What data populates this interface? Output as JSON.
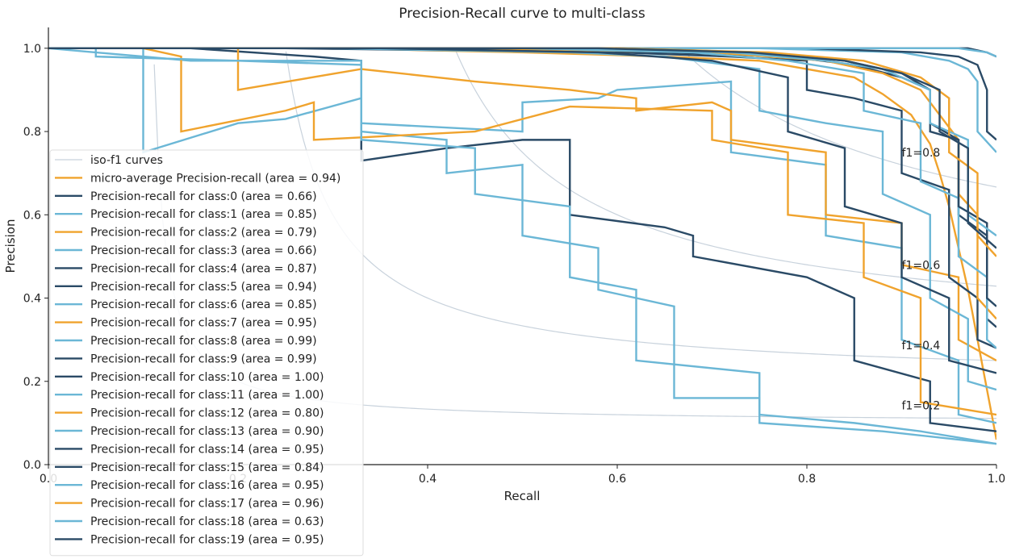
{
  "chart_data": {
    "type": "line",
    "title": "Precision-Recall curve to multi-class",
    "xlabel": "Recall",
    "ylabel": "Precision",
    "xlim": [
      0.0,
      1.0
    ],
    "ylim": [
      0.0,
      1.05
    ],
    "x_ticks": [
      "0.0",
      "0.2",
      "0.4",
      "0.6",
      "0.8",
      "1.0"
    ],
    "y_ticks": [
      "0.0",
      "0.2",
      "0.4",
      "0.6",
      "0.8",
      "1.0"
    ],
    "grid": false,
    "legend_position": "lower-left",
    "colors": {
      "dark": "#2a4a66",
      "light": "#6bb7d6",
      "orange": "#f0a32d",
      "iso": "#c8d2dc"
    },
    "iso_f1": {
      "legend_label": "iso-f1 curves",
      "levels": [
        {
          "f": 0.2,
          "label": "f1=0.2"
        },
        {
          "f": 0.4,
          "label": "f1=0.4"
        },
        {
          "f": 0.6,
          "label": "f1=0.6"
        },
        {
          "f": 0.8,
          "label": "f1=0.8"
        }
      ]
    },
    "series": [
      {
        "name": "micro-average Precision-recall (area = 0.94)",
        "color": "orange",
        "points": [
          [
            0,
            1.0
          ],
          [
            0.23,
            1.0
          ],
          [
            0.3,
            1.0
          ],
          [
            0.5,
            0.99
          ],
          [
            0.65,
            0.98
          ],
          [
            0.75,
            0.97
          ],
          [
            0.85,
            0.93
          ],
          [
            0.88,
            0.89
          ],
          [
            0.91,
            0.84
          ],
          [
            0.93,
            0.77
          ],
          [
            0.94,
            0.7
          ],
          [
            0.95,
            0.62
          ],
          [
            0.96,
            0.52
          ],
          [
            0.97,
            0.42
          ],
          [
            0.98,
            0.3
          ],
          [
            0.99,
            0.18
          ],
          [
            1.0,
            0.06
          ]
        ]
      },
      {
        "name": "Precision-recall for class:0 (area = 0.66)",
        "color": "dark",
        "points": [
          [
            0,
            1.0
          ],
          [
            0.15,
            1.0
          ],
          [
            0.28,
            0.98
          ],
          [
            0.33,
            0.97
          ],
          [
            0.33,
            0.73
          ],
          [
            0.42,
            0.76
          ],
          [
            0.5,
            0.78
          ],
          [
            0.55,
            0.78
          ],
          [
            0.55,
            0.6
          ],
          [
            0.65,
            0.57
          ],
          [
            0.68,
            0.55
          ],
          [
            0.68,
            0.5
          ],
          [
            0.8,
            0.45
          ],
          [
            0.85,
            0.4
          ],
          [
            0.85,
            0.25
          ],
          [
            0.93,
            0.2
          ],
          [
            0.93,
            0.1
          ],
          [
            1.0,
            0.08
          ]
        ]
      },
      {
        "name": "Precision-recall for class:1 (area = 0.85)",
        "color": "light",
        "points": [
          [
            0,
            1.0
          ],
          [
            0.1,
            0.98
          ],
          [
            0.15,
            0.97
          ],
          [
            0.33,
            0.97
          ],
          [
            0.33,
            0.82
          ],
          [
            0.5,
            0.8
          ],
          [
            0.5,
            0.87
          ],
          [
            0.58,
            0.88
          ],
          [
            0.6,
            0.9
          ],
          [
            0.72,
            0.92
          ],
          [
            0.72,
            0.75
          ],
          [
            0.82,
            0.72
          ],
          [
            0.82,
            0.55
          ],
          [
            0.9,
            0.52
          ],
          [
            0.9,
            0.3
          ],
          [
            0.96,
            0.25
          ],
          [
            0.96,
            0.12
          ],
          [
            1.0,
            0.1
          ]
        ]
      },
      {
        "name": "Precision-recall for class:2 (area = 0.79)",
        "color": "orange",
        "points": [
          [
            0,
            1.0
          ],
          [
            0.2,
            1.0
          ],
          [
            0.2,
            0.9
          ],
          [
            0.33,
            0.95
          ],
          [
            0.45,
            0.92
          ],
          [
            0.55,
            0.9
          ],
          [
            0.62,
            0.88
          ],
          [
            0.62,
            0.85
          ],
          [
            0.7,
            0.87
          ],
          [
            0.72,
            0.85
          ],
          [
            0.72,
            0.78
          ],
          [
            0.82,
            0.75
          ],
          [
            0.82,
            0.6
          ],
          [
            0.9,
            0.58
          ],
          [
            0.9,
            0.48
          ],
          [
            0.96,
            0.45
          ],
          [
            0.96,
            0.3
          ],
          [
            1.0,
            0.25
          ]
        ]
      },
      {
        "name": "Precision-recall for class:3 (area = 0.66)",
        "color": "light",
        "points": [
          [
            0,
            1.0
          ],
          [
            0.1,
            1.0
          ],
          [
            0.1,
            0.75
          ],
          [
            0.2,
            0.82
          ],
          [
            0.25,
            0.83
          ],
          [
            0.33,
            0.88
          ],
          [
            0.33,
            0.8
          ],
          [
            0.42,
            0.78
          ],
          [
            0.42,
            0.7
          ],
          [
            0.5,
            0.72
          ],
          [
            0.5,
            0.55
          ],
          [
            0.58,
            0.52
          ],
          [
            0.58,
            0.42
          ],
          [
            0.66,
            0.38
          ],
          [
            0.66,
            0.16
          ],
          [
            0.75,
            0.16
          ],
          [
            0.75,
            0.12
          ],
          [
            0.85,
            0.1
          ],
          [
            0.92,
            0.08
          ],
          [
            1.0,
            0.05
          ]
        ]
      },
      {
        "name": "Precision-recall for class:4 (area = 0.87)",
        "color": "dark",
        "points": [
          [
            0,
            1.0
          ],
          [
            0.25,
            1.0
          ],
          [
            0.6,
            0.99
          ],
          [
            0.72,
            0.98
          ],
          [
            0.8,
            0.97
          ],
          [
            0.8,
            0.9
          ],
          [
            0.85,
            0.88
          ],
          [
            0.9,
            0.85
          ],
          [
            0.9,
            0.7
          ],
          [
            0.95,
            0.66
          ],
          [
            0.95,
            0.45
          ],
          [
            0.98,
            0.4
          ],
          [
            0.98,
            0.3
          ],
          [
            1.0,
            0.28
          ]
        ]
      },
      {
        "name": "Precision-recall for class:5 (area = 0.94)",
        "color": "dark",
        "points": [
          [
            0,
            1.0
          ],
          [
            0.4,
            1.0
          ],
          [
            0.65,
            0.99
          ],
          [
            0.78,
            0.98
          ],
          [
            0.85,
            0.96
          ],
          [
            0.9,
            0.93
          ],
          [
            0.93,
            0.9
          ],
          [
            0.93,
            0.8
          ],
          [
            0.96,
            0.78
          ],
          [
            0.96,
            0.6
          ],
          [
            0.99,
            0.55
          ],
          [
            0.99,
            0.35
          ],
          [
            1.0,
            0.33
          ]
        ]
      },
      {
        "name": "Precision-recall for class:6 (area = 0.85)",
        "color": "light",
        "points": [
          [
            0,
            1.0
          ],
          [
            0.3,
            1.0
          ],
          [
            0.55,
            0.99
          ],
          [
            0.65,
            0.98
          ],
          [
            0.75,
            0.95
          ],
          [
            0.75,
            0.85
          ],
          [
            0.82,
            0.82
          ],
          [
            0.88,
            0.8
          ],
          [
            0.88,
            0.65
          ],
          [
            0.93,
            0.6
          ],
          [
            0.93,
            0.4
          ],
          [
            0.97,
            0.35
          ],
          [
            0.97,
            0.2
          ],
          [
            1.0,
            0.18
          ]
        ]
      },
      {
        "name": "Precision-recall for class:7 (area = 0.95)",
        "color": "orange",
        "points": [
          [
            0,
            1.0
          ],
          [
            0.45,
            1.0
          ],
          [
            0.7,
            0.99
          ],
          [
            0.82,
            0.97
          ],
          [
            0.88,
            0.94
          ],
          [
            0.92,
            0.9
          ],
          [
            0.94,
            0.84
          ],
          [
            0.96,
            0.78
          ],
          [
            0.96,
            0.65
          ],
          [
            0.98,
            0.6
          ],
          [
            0.98,
            0.4
          ],
          [
            1.0,
            0.35
          ]
        ]
      },
      {
        "name": "Precision-recall for class:8 (area = 0.99)",
        "color": "light",
        "points": [
          [
            0,
            1.0
          ],
          [
            0.75,
            1.0
          ],
          [
            0.9,
            0.99
          ],
          [
            0.95,
            0.97
          ],
          [
            0.97,
            0.95
          ],
          [
            0.98,
            0.92
          ],
          [
            0.98,
            0.8
          ],
          [
            1.0,
            0.75
          ]
        ]
      },
      {
        "name": "Precision-recall for class:9 (area = 0.99)",
        "color": "dark",
        "points": [
          [
            0,
            1.0
          ],
          [
            0.8,
            1.0
          ],
          [
            0.92,
            0.99
          ],
          [
            0.96,
            0.98
          ],
          [
            0.98,
            0.96
          ],
          [
            0.99,
            0.9
          ],
          [
            0.99,
            0.8
          ],
          [
            1.0,
            0.78
          ]
        ]
      },
      {
        "name": "Precision-recall for class:10 (area = 1.00)",
        "color": "dark",
        "points": [
          [
            0,
            1.0
          ],
          [
            0.97,
            1.0
          ],
          [
            0.99,
            0.99
          ],
          [
            1.0,
            0.98
          ]
        ]
      },
      {
        "name": "Precision-recall for class:11 (area = 1.00)",
        "color": "light",
        "points": [
          [
            0,
            1.0
          ],
          [
            0.96,
            1.0
          ],
          [
            0.99,
            0.99
          ],
          [
            1.0,
            0.98
          ]
        ]
      },
      {
        "name": "Precision-recall for class:12 (area = 0.80)",
        "color": "orange",
        "points": [
          [
            0,
            1.0
          ],
          [
            0.1,
            1.0
          ],
          [
            0.14,
            0.98
          ],
          [
            0.14,
            0.8
          ],
          [
            0.25,
            0.85
          ],
          [
            0.28,
            0.87
          ],
          [
            0.28,
            0.78
          ],
          [
            0.45,
            0.8
          ],
          [
            0.55,
            0.86
          ],
          [
            0.7,
            0.85
          ],
          [
            0.7,
            0.78
          ],
          [
            0.78,
            0.75
          ],
          [
            0.78,
            0.6
          ],
          [
            0.86,
            0.58
          ],
          [
            0.86,
            0.45
          ],
          [
            0.92,
            0.4
          ],
          [
            0.92,
            0.15
          ],
          [
            1.0,
            0.12
          ]
        ]
      },
      {
        "name": "Precision-recall for class:13 (area = 0.90)",
        "color": "light",
        "points": [
          [
            0,
            1.0
          ],
          [
            0.5,
            1.0
          ],
          [
            0.68,
            0.99
          ],
          [
            0.78,
            0.97
          ],
          [
            0.86,
            0.94
          ],
          [
            0.86,
            0.85
          ],
          [
            0.92,
            0.82
          ],
          [
            0.92,
            0.68
          ],
          [
            0.96,
            0.64
          ],
          [
            0.96,
            0.5
          ],
          [
            0.99,
            0.45
          ],
          [
            0.99,
            0.3
          ],
          [
            1.0,
            0.28
          ]
        ]
      },
      {
        "name": "Precision-recall for class:14 (area = 0.95)",
        "color": "dark",
        "points": [
          [
            0,
            1.0
          ],
          [
            0.6,
            1.0
          ],
          [
            0.75,
            0.99
          ],
          [
            0.84,
            0.97
          ],
          [
            0.9,
            0.94
          ],
          [
            0.93,
            0.9
          ],
          [
            0.93,
            0.82
          ],
          [
            0.96,
            0.78
          ],
          [
            0.96,
            0.62
          ],
          [
            0.99,
            0.58
          ],
          [
            0.99,
            0.4
          ],
          [
            1.0,
            0.38
          ]
        ]
      },
      {
        "name": "Precision-recall for class:15 (area = 0.84)",
        "color": "dark",
        "points": [
          [
            0,
            1.0
          ],
          [
            0.35,
            1.0
          ],
          [
            0.58,
            0.99
          ],
          [
            0.7,
            0.97
          ],
          [
            0.78,
            0.93
          ],
          [
            0.78,
            0.8
          ],
          [
            0.84,
            0.76
          ],
          [
            0.84,
            0.62
          ],
          [
            0.9,
            0.58
          ],
          [
            0.9,
            0.45
          ],
          [
            0.95,
            0.4
          ],
          [
            0.95,
            0.25
          ],
          [
            1.0,
            0.22
          ]
        ]
      },
      {
        "name": "Precision-recall for class:16 (area = 0.95)",
        "color": "light",
        "points": [
          [
            0,
            1.0
          ],
          [
            0.55,
            1.0
          ],
          [
            0.72,
            0.99
          ],
          [
            0.82,
            0.97
          ],
          [
            0.88,
            0.95
          ],
          [
            0.93,
            0.9
          ],
          [
            0.93,
            0.82
          ],
          [
            0.97,
            0.78
          ],
          [
            0.97,
            0.6
          ],
          [
            1.0,
            0.55
          ]
        ]
      },
      {
        "name": "Precision-recall for class:17 (area = 0.96)",
        "color": "orange",
        "points": [
          [
            0,
            1.0
          ],
          [
            0.6,
            1.0
          ],
          [
            0.76,
            0.99
          ],
          [
            0.86,
            0.97
          ],
          [
            0.92,
            0.93
          ],
          [
            0.95,
            0.88
          ],
          [
            0.95,
            0.75
          ],
          [
            0.98,
            0.7
          ],
          [
            0.98,
            0.55
          ],
          [
            1.0,
            0.5
          ]
        ]
      },
      {
        "name": "Precision-recall for class:18 (area = 0.63)",
        "color": "light",
        "points": [
          [
            0,
            1.0
          ],
          [
            0.05,
            1.0
          ],
          [
            0.05,
            0.98
          ],
          [
            0.2,
            0.97
          ],
          [
            0.33,
            0.96
          ],
          [
            0.33,
            0.78
          ],
          [
            0.45,
            0.76
          ],
          [
            0.45,
            0.65
          ],
          [
            0.55,
            0.62
          ],
          [
            0.55,
            0.45
          ],
          [
            0.62,
            0.42
          ],
          [
            0.62,
            0.25
          ],
          [
            0.75,
            0.22
          ],
          [
            0.75,
            0.1
          ],
          [
            0.88,
            0.08
          ],
          [
            1.0,
            0.05
          ]
        ]
      },
      {
        "name": "Precision-recall for class:19 (area = 0.95)",
        "color": "dark",
        "points": [
          [
            0,
            1.0
          ],
          [
            0.58,
            1.0
          ],
          [
            0.74,
            0.99
          ],
          [
            0.84,
            0.97
          ],
          [
            0.9,
            0.94
          ],
          [
            0.94,
            0.9
          ],
          [
            0.94,
            0.8
          ],
          [
            0.97,
            0.76
          ],
          [
            0.97,
            0.58
          ],
          [
            1.0,
            0.52
          ]
        ]
      }
    ]
  }
}
